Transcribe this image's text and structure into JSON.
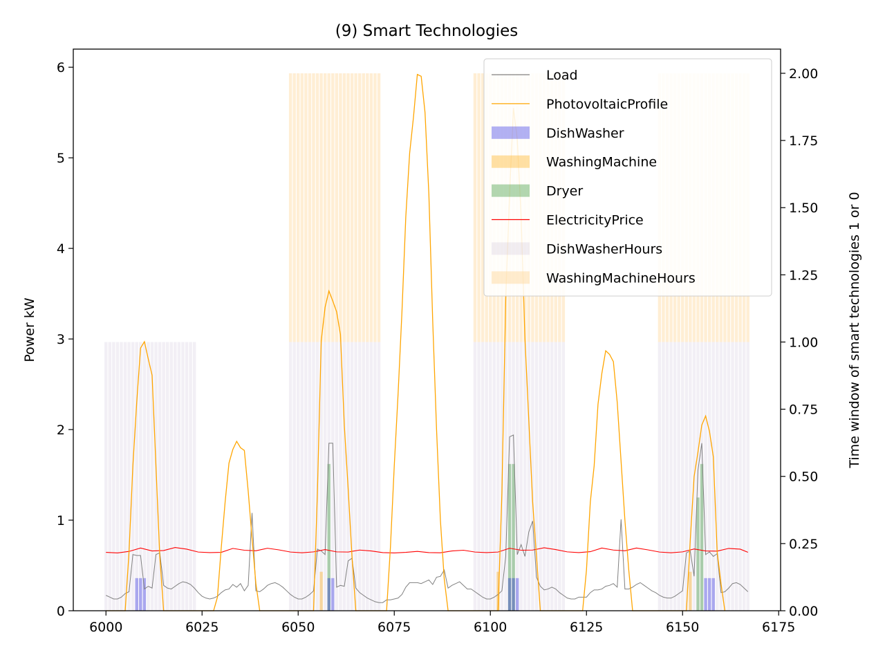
{
  "chart_data": {
    "type": "line",
    "title": "(9) Smart Technologies",
    "ylabel": "Power kW",
    "y2label": "Time window of smart technologies 1 or 0",
    "xlim": [
      5991.5,
      6175.5
    ],
    "ylim": [
      0,
      6.2
    ],
    "y2lim": [
      0,
      2.09
    ],
    "x_ticks": [
      6000,
      6025,
      6050,
      6075,
      6100,
      6125,
      6150,
      6175
    ],
    "y_ticks": [
      0,
      1,
      2,
      3,
      4,
      5,
      6
    ],
    "y2_ticks": [
      "0.00",
      "0.25",
      "0.50",
      "0.75",
      "1.00",
      "1.25",
      "1.50",
      "1.75",
      "2.00"
    ],
    "legend_position": "top-right",
    "colors": {
      "load": "#808080",
      "pv": "#ffa500",
      "dishwasher": "#0000dd",
      "washing": "#ffa500",
      "dryer": "#228b22",
      "price": "#ff0000",
      "dish_hours": "#b9a8c8",
      "wash_hours": "#ffd9a0"
    },
    "series": [
      {
        "name": "Load",
        "kind": "line"
      },
      {
        "name": "PhotovoltaicProfile",
        "kind": "line"
      },
      {
        "name": "DishWasher",
        "kind": "bar"
      },
      {
        "name": "WashingMachine",
        "kind": "bar"
      },
      {
        "name": "Dryer",
        "kind": "bar"
      },
      {
        "name": "ElectricityPrice",
        "kind": "line"
      },
      {
        "name": "DishWasherHours",
        "kind": "bar"
      },
      {
        "name": "WashingMachineHours",
        "kind": "bar"
      }
    ],
    "load_points": [
      [
        6000,
        0.17
      ],
      [
        6001,
        0.15
      ],
      [
        6002,
        0.13
      ],
      [
        6003,
        0.13
      ],
      [
        6004,
        0.15
      ],
      [
        6005,
        0.19
      ],
      [
        6006,
        0.21
      ],
      [
        6007,
        0.62
      ],
      [
        6008,
        0.61
      ],
      [
        6009,
        0.61
      ],
      [
        6010,
        0.24
      ],
      [
        6011,
        0.27
      ],
      [
        6012,
        0.25
      ],
      [
        6013,
        0.62
      ],
      [
        6014,
        0.64
      ],
      [
        6015,
        0.28
      ],
      [
        6016,
        0.25
      ],
      [
        6017,
        0.24
      ],
      [
        6018,
        0.27
      ],
      [
        6019,
        0.3
      ],
      [
        6020,
        0.32
      ],
      [
        6021,
        0.31
      ],
      [
        6022,
        0.29
      ],
      [
        6023,
        0.25
      ],
      [
        6024,
        0.2
      ],
      [
        6025,
        0.16
      ],
      [
        6026,
        0.14
      ],
      [
        6027,
        0.13
      ],
      [
        6028,
        0.14
      ],
      [
        6029,
        0.16
      ],
      [
        6030,
        0.2
      ],
      [
        6031,
        0.23
      ],
      [
        6032,
        0.24
      ],
      [
        6033,
        0.29
      ],
      [
        6034,
        0.26
      ],
      [
        6035,
        0.3
      ],
      [
        6036,
        0.22
      ],
      [
        6037,
        0.28
      ],
      [
        6038,
        1.08
      ],
      [
        6039,
        0.22
      ],
      [
        6040,
        0.21
      ],
      [
        6041,
        0.24
      ],
      [
        6042,
        0.28
      ],
      [
        6043,
        0.3
      ],
      [
        6044,
        0.31
      ],
      [
        6045,
        0.29
      ],
      [
        6046,
        0.26
      ],
      [
        6047,
        0.22
      ],
      [
        6048,
        0.18
      ],
      [
        6049,
        0.15
      ],
      [
        6050,
        0.13
      ],
      [
        6051,
        0.13
      ],
      [
        6052,
        0.15
      ],
      [
        6053,
        0.18
      ],
      [
        6054,
        0.22
      ],
      [
        6055,
        0.68
      ],
      [
        6056,
        0.66
      ],
      [
        6057,
        0.62
      ],
      [
        6058,
        1.85
      ],
      [
        6059,
        1.85
      ],
      [
        6060,
        0.26
      ],
      [
        6061,
        0.28
      ],
      [
        6062,
        0.27
      ],
      [
        6063,
        0.55
      ],
      [
        6064,
        0.58
      ],
      [
        6065,
        0.25
      ],
      [
        6066,
        0.2
      ],
      [
        6067,
        0.17
      ],
      [
        6068,
        0.14
      ],
      [
        6069,
        0.12
      ],
      [
        6070,
        0.1
      ],
      [
        6071,
        0.09
      ],
      [
        6072,
        0.09
      ],
      [
        6073,
        0.12
      ],
      [
        6074,
        0.12
      ],
      [
        6075,
        0.13
      ],
      [
        6076,
        0.14
      ],
      [
        6077,
        0.18
      ],
      [
        6078,
        0.26
      ],
      [
        6079,
        0.31
      ],
      [
        6080,
        0.31
      ],
      [
        6081,
        0.31
      ],
      [
        6082,
        0.3
      ],
      [
        6083,
        0.32
      ],
      [
        6084,
        0.34
      ],
      [
        6085,
        0.29
      ],
      [
        6086,
        0.37
      ],
      [
        6087,
        0.38
      ],
      [
        6088,
        0.45
      ],
      [
        6089,
        0.25
      ],
      [
        6090,
        0.28
      ],
      [
        6091,
        0.3
      ],
      [
        6092,
        0.32
      ],
      [
        6093,
        0.28
      ],
      [
        6094,
        0.24
      ],
      [
        6095,
        0.24
      ],
      [
        6096,
        0.21
      ],
      [
        6097,
        0.18
      ],
      [
        6098,
        0.15
      ],
      [
        6099,
        0.13
      ],
      [
        6100,
        0.13
      ],
      [
        6101,
        0.15
      ],
      [
        6102,
        0.18
      ],
      [
        6103,
        0.22
      ],
      [
        6104,
        0.6
      ],
      [
        6105,
        1.92
      ],
      [
        6106,
        1.94
      ],
      [
        6107,
        0.62
      ],
      [
        6108,
        0.73
      ],
      [
        6109,
        0.6
      ],
      [
        6110,
        0.87
      ],
      [
        6111,
        0.99
      ],
      [
        6112,
        0.37
      ],
      [
        6113,
        0.27
      ],
      [
        6114,
        0.23
      ],
      [
        6115,
        0.24
      ],
      [
        6116,
        0.26
      ],
      [
        6117,
        0.24
      ],
      [
        6118,
        0.2
      ],
      [
        6119,
        0.17
      ],
      [
        6120,
        0.14
      ],
      [
        6121,
        0.13
      ],
      [
        6122,
        0.13
      ],
      [
        6123,
        0.15
      ],
      [
        6124,
        0.15
      ],
      [
        6125,
        0.15
      ],
      [
        6126,
        0.2
      ],
      [
        6127,
        0.23
      ],
      [
        6128,
        0.23
      ],
      [
        6129,
        0.24
      ],
      [
        6130,
        0.27
      ],
      [
        6131,
        0.28
      ],
      [
        6132,
        0.3
      ],
      [
        6133,
        0.26
      ],
      [
        6134,
        1.01
      ],
      [
        6135,
        0.24
      ],
      [
        6136,
        0.24
      ],
      [
        6137,
        0.26
      ],
      [
        6138,
        0.29
      ],
      [
        6139,
        0.31
      ],
      [
        6140,
        0.28
      ],
      [
        6141,
        0.25
      ],
      [
        6142,
        0.22
      ],
      [
        6143,
        0.2
      ],
      [
        6144,
        0.17
      ],
      [
        6145,
        0.15
      ],
      [
        6146,
        0.14
      ],
      [
        6147,
        0.14
      ],
      [
        6148,
        0.16
      ],
      [
        6149,
        0.19
      ],
      [
        6150,
        0.22
      ],
      [
        6151,
        0.64
      ],
      [
        6152,
        0.66
      ],
      [
        6153,
        0.38
      ],
      [
        6154,
        1.55
      ],
      [
        6155,
        1.85
      ],
      [
        6156,
        0.62
      ],
      [
        6157,
        0.65
      ],
      [
        6158,
        0.6
      ],
      [
        6159,
        0.63
      ],
      [
        6160,
        0.2
      ],
      [
        6161,
        0.21
      ],
      [
        6162,
        0.25
      ],
      [
        6163,
        0.3
      ],
      [
        6164,
        0.31
      ],
      [
        6165,
        0.29
      ],
      [
        6166,
        0.25
      ],
      [
        6167,
        0.21
      ]
    ],
    "pv_points": [
      [
        6000,
        0
      ],
      [
        6005,
        0
      ],
      [
        6006,
        0.65
      ],
      [
        6007,
        1.6
      ],
      [
        6008,
        2.3
      ],
      [
        6009,
        2.9
      ],
      [
        6010,
        2.97
      ],
      [
        6011,
        2.78
      ],
      [
        6012,
        2.6
      ],
      [
        6013,
        1.6
      ],
      [
        6014,
        0.6
      ],
      [
        6015,
        0
      ],
      [
        6016,
        0
      ],
      [
        6028,
        0
      ],
      [
        6029,
        0.15
      ],
      [
        6030,
        0.7
      ],
      [
        6031,
        1.2
      ],
      [
        6032,
        1.63
      ],
      [
        6033,
        1.78
      ],
      [
        6034,
        1.87
      ],
      [
        6035,
        1.8
      ],
      [
        6036,
        1.77
      ],
      [
        6037,
        1.32
      ],
      [
        6038,
        0.8
      ],
      [
        6039,
        0.3
      ],
      [
        6040,
        0
      ],
      [
        6054,
        0
      ],
      [
        6055,
        1.3
      ],
      [
        6056,
        2.98
      ],
      [
        6057,
        3.35
      ],
      [
        6058,
        3.53
      ],
      [
        6059,
        3.42
      ],
      [
        6060,
        3.3
      ],
      [
        6061,
        3.05
      ],
      [
        6062,
        2.05
      ],
      [
        6063,
        1.35
      ],
      [
        6064,
        0.6
      ],
      [
        6065,
        0
      ],
      [
        6073,
        0
      ],
      [
        6074,
        0.7
      ],
      [
        6075,
        1.6
      ],
      [
        6076,
        2.4
      ],
      [
        6077,
        3.3
      ],
      [
        6078,
        4.35
      ],
      [
        6079,
        5.05
      ],
      [
        6080,
        5.45
      ],
      [
        6081,
        5.92
      ],
      [
        6082,
        5.9
      ],
      [
        6083,
        5.5
      ],
      [
        6084,
        4.6
      ],
      [
        6085,
        3.2
      ],
      [
        6086,
        2.0
      ],
      [
        6087,
        1.0
      ],
      [
        6088,
        0.35
      ],
      [
        6089,
        0
      ],
      [
        6102,
        0
      ],
      [
        6103,
        1.3
      ],
      [
        6104,
        3.45
      ],
      [
        6105,
        4.6
      ],
      [
        6106,
        5.55
      ],
      [
        6107,
        5.2
      ],
      [
        6108,
        4.35
      ],
      [
        6109,
        3.0
      ],
      [
        6110,
        2.1
      ],
      [
        6111,
        1.2
      ],
      [
        6112,
        0.6
      ],
      [
        6113,
        0
      ],
      [
        6124,
        0
      ],
      [
        6125,
        0.45
      ],
      [
        6126,
        1.2
      ],
      [
        6127,
        1.6
      ],
      [
        6128,
        2.28
      ],
      [
        6129,
        2.62
      ],
      [
        6130,
        2.87
      ],
      [
        6131,
        2.83
      ],
      [
        6132,
        2.75
      ],
      [
        6133,
        2.3
      ],
      [
        6134,
        1.65
      ],
      [
        6135,
        1.0
      ],
      [
        6136,
        0.45
      ],
      [
        6137,
        0
      ],
      [
        6151,
        0
      ],
      [
        6152,
        0.78
      ],
      [
        6153,
        1.48
      ],
      [
        6154,
        1.75
      ],
      [
        6155,
        2.05
      ],
      [
        6156,
        2.15
      ],
      [
        6157,
        1.98
      ],
      [
        6158,
        1.7
      ],
      [
        6159,
        0.65
      ],
      [
        6160,
        0.3
      ],
      [
        6161,
        0
      ]
    ],
    "price_points": [
      [
        6000,
        0.645
      ],
      [
        6003,
        0.638
      ],
      [
        6006,
        0.655
      ],
      [
        6009,
        0.692
      ],
      [
        6012,
        0.66
      ],
      [
        6015,
        0.665
      ],
      [
        6018,
        0.698
      ],
      [
        6021,
        0.68
      ],
      [
        6024,
        0.648
      ],
      [
        6027,
        0.642
      ],
      [
        6030,
        0.645
      ],
      [
        6033,
        0.688
      ],
      [
        6036,
        0.668
      ],
      [
        6039,
        0.662
      ],
      [
        6042,
        0.69
      ],
      [
        6045,
        0.672
      ],
      [
        6048,
        0.648
      ],
      [
        6051,
        0.64
      ],
      [
        6054,
        0.65
      ],
      [
        6057,
        0.675
      ],
      [
        6060,
        0.65
      ],
      [
        6063,
        0.648
      ],
      [
        6066,
        0.67
      ],
      [
        6069,
        0.66
      ],
      [
        6072,
        0.642
      ],
      [
        6075,
        0.638
      ],
      [
        6078,
        0.645
      ],
      [
        6081,
        0.655
      ],
      [
        6084,
        0.642
      ],
      [
        6087,
        0.64
      ],
      [
        6090,
        0.66
      ],
      [
        6093,
        0.668
      ],
      [
        6096,
        0.648
      ],
      [
        6099,
        0.642
      ],
      [
        6102,
        0.648
      ],
      [
        6105,
        0.69
      ],
      [
        6108,
        0.668
      ],
      [
        6111,
        0.67
      ],
      [
        6114,
        0.695
      ],
      [
        6117,
        0.675
      ],
      [
        6120,
        0.65
      ],
      [
        6123,
        0.642
      ],
      [
        6126,
        0.652
      ],
      [
        6129,
        0.692
      ],
      [
        6132,
        0.67
      ],
      [
        6135,
        0.662
      ],
      [
        6138,
        0.692
      ],
      [
        6141,
        0.672
      ],
      [
        6144,
        0.648
      ],
      [
        6147,
        0.64
      ],
      [
        6150,
        0.65
      ],
      [
        6153,
        0.682
      ],
      [
        6156,
        0.66
      ],
      [
        6159,
        0.658
      ],
      [
        6162,
        0.688
      ],
      [
        6165,
        0.68
      ],
      [
        6167,
        0.645
      ]
    ],
    "dishwasher_bars": [
      {
        "x": 6008,
        "value": 0.36
      },
      {
        "x": 6009,
        "value": 0.36
      },
      {
        "x": 6010,
        "value": 0.36
      },
      {
        "x": 6058,
        "value": 0.36
      },
      {
        "x": 6059,
        "value": 0.36
      },
      {
        "x": 6105,
        "value": 0.36
      },
      {
        "x": 6106,
        "value": 0.36
      },
      {
        "x": 6107,
        "value": 0.36
      },
      {
        "x": 6156,
        "value": 0.36
      },
      {
        "x": 6157,
        "value": 0.36
      },
      {
        "x": 6158,
        "value": 0.36
      }
    ],
    "washing_bars": [
      {
        "x": 6056,
        "value": 0.43
      },
      {
        "x": 6102,
        "value": 0.43
      },
      {
        "x": 6152,
        "value": 0.43
      }
    ],
    "dryer_bars": [
      {
        "x": 6058,
        "value": 1.62
      },
      {
        "x": 6105,
        "value": 1.62
      },
      {
        "x": 6106,
        "value": 1.62
      },
      {
        "x": 6154,
        "value": 1.25
      },
      {
        "x": 6155,
        "value": 1.62
      }
    ],
    "dish_hours_windows": [
      {
        "start": 6000,
        "end": 6023,
        "value": 1.0
      },
      {
        "start": 6048,
        "end": 6071,
        "value": 1.0
      },
      {
        "start": 6096,
        "end": 6119,
        "value": 1.0
      },
      {
        "start": 6144,
        "end": 6167,
        "value": 1.0
      }
    ],
    "wash_hours_windows": [
      {
        "start": 6048,
        "end": 6071,
        "value": 1.0
      },
      {
        "start": 6096,
        "end": 6119,
        "value": 1.0
      },
      {
        "start": 6144,
        "end": 6167,
        "value": 1.0
      }
    ]
  }
}
